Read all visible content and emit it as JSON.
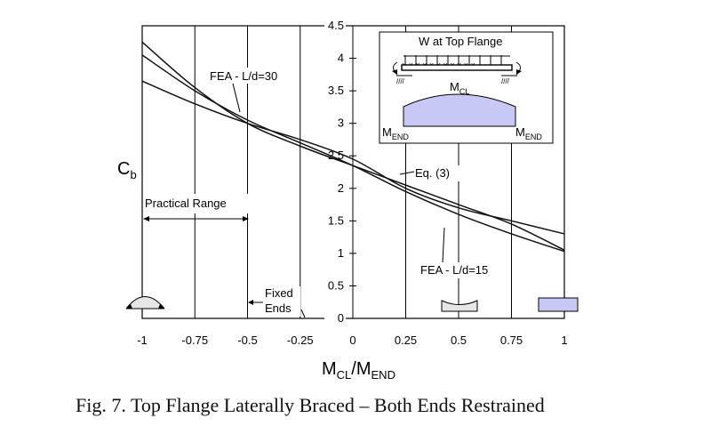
{
  "chart_data": {
    "type": "line",
    "xlabel": {
      "main": "M",
      "sub1": "CL",
      "sep": "/M",
      "sub2": "END"
    },
    "ylabel": {
      "main": "C",
      "sub": "b"
    },
    "xlim": [
      -1,
      1
    ],
    "ylim": [
      0,
      4.5
    ],
    "x_ticks": [
      -1,
      -0.75,
      -0.5,
      -0.25,
      0,
      0.25,
      0.5,
      0.75,
      1
    ],
    "x_tick_labels": [
      "-1",
      "-0.75",
      "-0.5",
      "-0.25",
      "0",
      "0.25",
      "0.5",
      "0.75",
      "1"
    ],
    "y_ticks": [
      0,
      0.5,
      1,
      1.5,
      2,
      2.5,
      3,
      3.5,
      4,
      4.5
    ],
    "y_tick_labels": [
      "0",
      "0.5",
      "1",
      "1.5",
      "2",
      "2.5",
      "3",
      "3.5",
      "4",
      "4.5"
    ],
    "grid": true,
    "series": [
      {
        "name": "FEA - L/d=30",
        "x": [
          -1,
          -0.75,
          -0.5,
          -0.25,
          0,
          0.25,
          0.5,
          0.75,
          1
        ],
        "y": [
          4.05,
          3.5,
          3.05,
          2.7,
          2.35,
          1.95,
          1.6,
          1.3,
          1.03
        ]
      },
      {
        "name": "Eq. (3)",
        "x": [
          -1,
          -0.75,
          -0.5,
          -0.25,
          0,
          0.25,
          0.5,
          0.75,
          1
        ],
        "y": [
          4.25,
          3.55,
          3.0,
          2.65,
          2.35,
          2.05,
          1.75,
          1.45,
          1.05
        ]
      },
      {
        "name": "FEA - L/d=15",
        "x": [
          -1,
          -0.75,
          -0.5,
          -0.25,
          0,
          0.25,
          0.5,
          0.75,
          1
        ],
        "y": [
          3.65,
          3.3,
          3.0,
          2.75,
          2.45,
          2.0,
          1.7,
          1.5,
          1.3
        ]
      }
    ],
    "annotations": {
      "practical_range": "Practical Range",
      "fixed_ends_line1": "Fixed",
      "fixed_ends_line2": "Ends",
      "fea30_label": "FEA - L/d=30",
      "eq3_label": "Eq. (3)",
      "fea15_label": "FEA - L/d=15"
    },
    "inset": {
      "title": "W at Top Flange",
      "mcl_main": "M",
      "mcl_sub": "CL",
      "mend_left_main": "M",
      "mend_left_sub": "END",
      "mend_right_main": "M",
      "mend_right_sub": "END",
      "moment_fill": "#c8c8f4"
    },
    "colors": {
      "line": "#111111",
      "grid": "#000000",
      "rect_fill": "#c8c8f4"
    }
  },
  "caption": "Fig. 7.  Top Flange Laterally Braced – Both Ends Restrained"
}
